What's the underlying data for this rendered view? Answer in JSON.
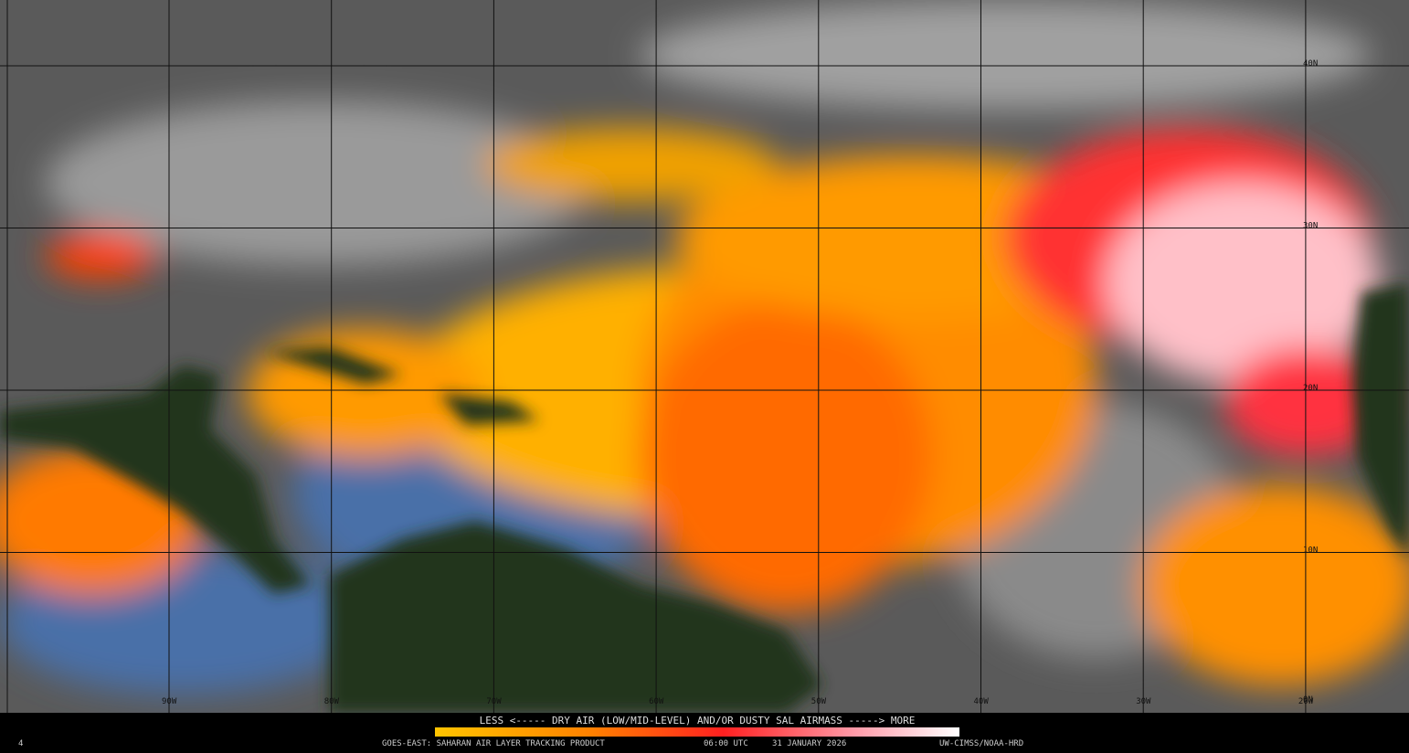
{
  "legend": {
    "caption": "LESS <----- DRY AIR (LOW/MID-LEVEL) AND/OR DUSTY SAL AIRMASS -----> MORE"
  },
  "footer": {
    "corner": "4",
    "product": "GOES-EAST: SAHARAN AIR LAYER TRACKING PRODUCT",
    "time": "06:00 UTC",
    "date": "31 JANUARY 2026",
    "credit": "UW-CIMSS/NOAA-HRD"
  },
  "grid": {
    "lat_labels": [
      "40N",
      "30N",
      "20N",
      "10N",
      "0N"
    ],
    "lon_labels": [
      "90W",
      "80W",
      "70W",
      "60W",
      "50W",
      "40W",
      "30W",
      "20W"
    ]
  }
}
